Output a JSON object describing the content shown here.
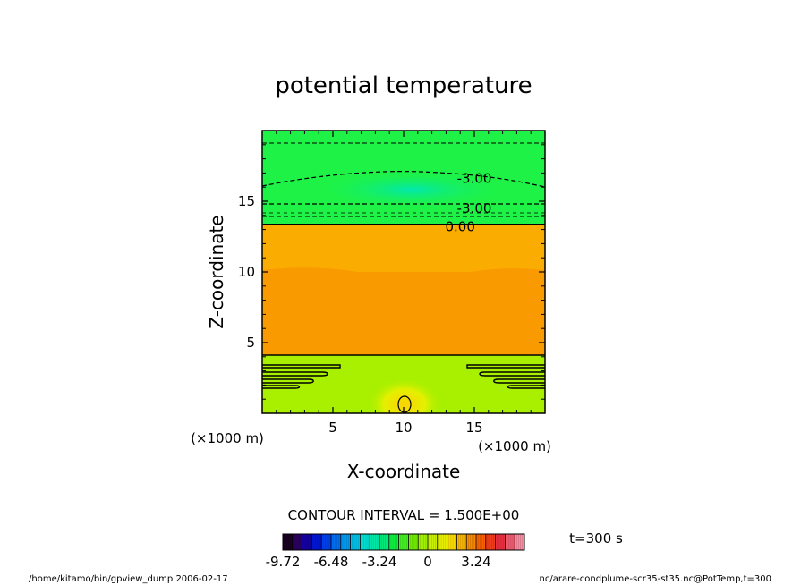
{
  "chart_data": {
    "type": "contour",
    "title": "potential temperature",
    "xlabel": "X-coordinate",
    "ylabel": "Z-coordinate",
    "x_unit": "(×1000 m)",
    "y_unit": "(×1000 m)",
    "xlim": [
      0,
      20
    ],
    "ylim": [
      0,
      20
    ],
    "x_ticks": [
      5,
      10,
      15
    ],
    "y_ticks": [
      5,
      10,
      15
    ],
    "x_tick_labels": [
      "5",
      "10",
      "15"
    ],
    "y_tick_labels": [
      "5",
      "10",
      "15"
    ],
    "contour_interval_text": "CONTOUR INTERVAL = 1.500E+00",
    "contour_labels": [
      {
        "text": "-3.00",
        "x": 15.0,
        "z": 16.6
      },
      {
        "text": "-3.00",
        "x": 15.0,
        "z": 14.5
      },
      {
        "text": "0.00",
        "x": 14.0,
        "z": 13.2
      }
    ],
    "regions": [
      {
        "z_from": 13.4,
        "z_to": 20.0,
        "color": "#1ef246",
        "label": "negative (green)"
      },
      {
        "z_from": 10.0,
        "z_to": 13.4,
        "color": "#fbac00",
        "label": "positive (orange)"
      },
      {
        "z_from": 4.1,
        "z_to": 10.0,
        "color": "#f99a00",
        "label": "positive (dark orange)"
      },
      {
        "z_from": 0.0,
        "z_to": 4.1,
        "color": "#a8f000",
        "label": "near zero (yellow-green)"
      }
    ],
    "colorbar": {
      "tick_labels": [
        "-9.72",
        "-6.48",
        "-3.24",
        "0",
        "3.24"
      ],
      "min": -9.72,
      "max": 6.48,
      "colors": [
        "#1a0022",
        "#2a0060",
        "#1400a0",
        "#0016cf",
        "#0040e8",
        "#006ef0",
        "#0098f0",
        "#00c0e8",
        "#00dcd0",
        "#00e8a8",
        "#00e878",
        "#10ee40",
        "#40f020",
        "#70f000",
        "#a0f000",
        "#c8f000",
        "#e8f000",
        "#f8dc00",
        "#f8b400",
        "#f88a00",
        "#f86000",
        "#f03c1c",
        "#e83040",
        "#f05a70",
        "#f88aa0"
      ]
    },
    "time_label": "t=300 s"
  },
  "footer": {
    "left": "/home/kitamo/bin/gpview_dump   2006-02-17",
    "right": "nc/arare-condplume-scr35-st35.nc@PotTemp,t=300"
  }
}
